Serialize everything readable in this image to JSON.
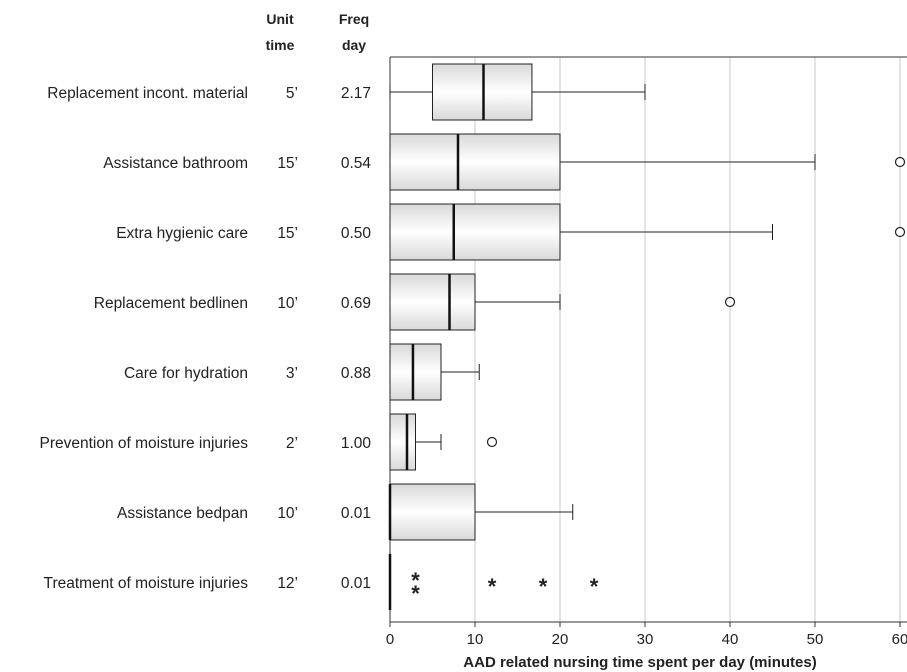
{
  "chart_data": {
    "type": "box",
    "orientation": "horizontal",
    "title": "",
    "xlabel": "AAD related nursing time spent per day (minutes)",
    "xlim": [
      0,
      60
    ],
    "xticks": [
      0,
      10,
      20,
      30,
      40,
      50,
      60
    ],
    "grid": "vertical",
    "box_fill": [
      "#d9d9d9",
      "#ffffff"
    ],
    "column_headers": {
      "unit_time": [
        "Unit",
        "time"
      ],
      "freq_day": [
        "Freq",
        "day"
      ]
    },
    "rows": [
      {
        "label": "Replacement incont. material",
        "unit_time": "5’",
        "freq": "2.17",
        "whisker_low": 0,
        "q1": 5,
        "median": 11,
        "q3": 16.7,
        "whisker_high": 30,
        "outliers": [],
        "extremes": []
      },
      {
        "label": "Assistance bathroom",
        "unit_time": "15’",
        "freq": "0.54",
        "whisker_low": 0,
        "q1": 0,
        "median": 8,
        "q3": 20,
        "whisker_high": 50,
        "outliers": [
          60
        ],
        "extremes": []
      },
      {
        "label": "Extra hygienic care",
        "unit_time": "15’",
        "freq": "0.50",
        "whisker_low": 0,
        "q1": 0,
        "median": 7.5,
        "q3": 20,
        "whisker_high": 45,
        "outliers": [
          60
        ],
        "extremes": []
      },
      {
        "label": "Replacement bedlinen",
        "unit_time": "10’",
        "freq": "0.69",
        "whisker_low": 0,
        "q1": 0,
        "median": 7,
        "q3": 10,
        "whisker_high": 20,
        "outliers": [
          40
        ],
        "extremes": []
      },
      {
        "label": "Care for hydration",
        "unit_time": "3’",
        "freq": "0.88",
        "whisker_low": 0,
        "q1": 0,
        "median": 2.7,
        "q3": 6,
        "whisker_high": 10.5,
        "outliers": [],
        "extremes": []
      },
      {
        "label": "Prevention of moisture injuries",
        "unit_time": "2’",
        "freq": "1.00",
        "whisker_low": 0,
        "q1": 0,
        "median": 2,
        "q3": 3,
        "whisker_high": 6,
        "outliers": [
          12
        ],
        "extremes": []
      },
      {
        "label": "Assistance bedpan",
        "unit_time": "10’",
        "freq": "0.01",
        "whisker_low": 0,
        "q1": 0,
        "median": 0,
        "q3": 10,
        "whisker_high": 21.5,
        "outliers": [],
        "extremes": []
      },
      {
        "label": "Treatment of moisture injuries",
        "unit_time": "12’",
        "freq": "0.01",
        "whisker_low": 0,
        "q1": 0,
        "median": 0,
        "q3": 0,
        "whisker_high": 0,
        "outliers": [],
        "extremes": [
          3,
          3,
          12,
          18,
          24
        ]
      }
    ]
  }
}
